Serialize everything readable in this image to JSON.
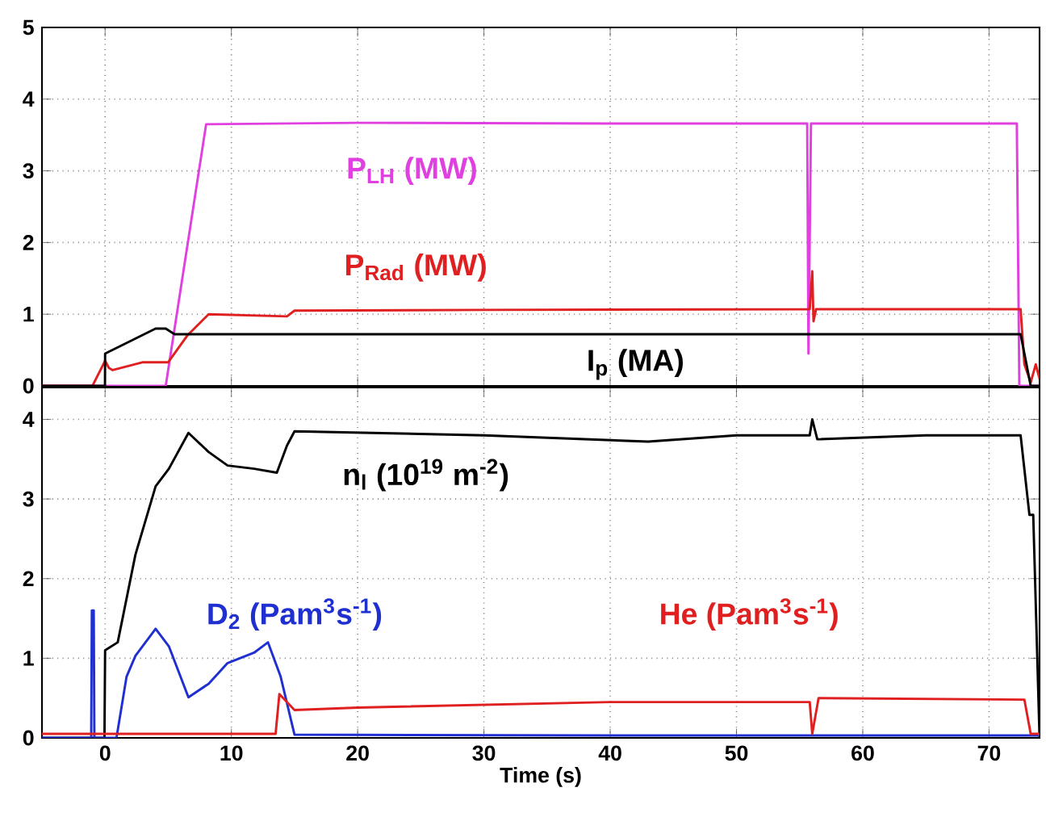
{
  "chart_data": [
    {
      "type": "line",
      "xlim": [
        -5,
        74
      ],
      "xticks": [
        0,
        10,
        20,
        30,
        40,
        50,
        60,
        70
      ],
      "ylim": [
        0,
        5
      ],
      "yticks": [
        0,
        1,
        2,
        3,
        4,
        5
      ],
      "grid": true,
      "tick_labels": "y",
      "line_style": "solid",
      "series": [
        {
          "name": "P$_{LH}$ (MW)",
          "color": "#e040e0",
          "x": [
            -5,
            4.8,
            8,
            20,
            40,
            55.6,
            55.7,
            55.9,
            72.2,
            72.4,
            74
          ],
          "values": [
            0,
            0,
            3.65,
            3.67,
            3.66,
            3.66,
            0.45,
            3.66,
            3.66,
            0,
            0
          ]
        },
        {
          "name": "P$_{Rad}$ (MW)",
          "color": "#e02020",
          "x": [
            -5,
            -1,
            0,
            0.3,
            0.6,
            3,
            5,
            6.5,
            8.2,
            14.4,
            15,
            30,
            55.8,
            56,
            56.1,
            56.3,
            72.5,
            72.8,
            73.3,
            73.7,
            74
          ],
          "values": [
            0,
            0,
            0.35,
            0.25,
            0.22,
            0.33,
            0.33,
            0.7,
            1.0,
            0.97,
            1.05,
            1.06,
            1.07,
            1.6,
            0.9,
            1.07,
            1.07,
            0.3,
            0.05,
            0.3,
            0.1
          ]
        },
        {
          "name": "I$_{p}$ (MA)",
          "color": "#000000",
          "x": [
            -5,
            -0.01,
            0,
            4,
            4.8,
            5.5,
            30,
            56,
            72.5,
            73.3,
            74
          ],
          "values": [
            0,
            0,
            0.45,
            0.8,
            0.8,
            0.72,
            0.72,
            0.72,
            0.72,
            0,
            0
          ]
        }
      ]
    },
    {
      "type": "line",
      "xlim": [
        -5,
        74
      ],
      "xticks": [
        0,
        10,
        20,
        30,
        40,
        50,
        60,
        70
      ],
      "ylim": [
        0,
        4.4
      ],
      "yticks": [
        0,
        1,
        2,
        3,
        4
      ],
      "grid": true,
      "xlabel": "Time (s)",
      "line_style": "solid",
      "series": [
        {
          "name": "n$_{l}$ (10$^{19}$ m$^{-2}$)",
          "color": "#000000",
          "x": [
            -5,
            -0.05,
            0,
            1,
            2.4,
            4,
            5.05,
            6.6,
            8.2,
            9.7,
            11.8,
            13.6,
            14.4,
            15,
            30,
            43,
            50,
            55.8,
            56,
            56.4,
            65,
            72.5,
            73.2,
            73.5,
            74
          ],
          "values": [
            0,
            0,
            1.1,
            1.2,
            2.3,
            3.16,
            3.38,
            3.83,
            3.59,
            3.42,
            3.38,
            3.33,
            3.67,
            3.85,
            3.8,
            3.72,
            3.8,
            3.8,
            4.0,
            3.75,
            3.8,
            3.8,
            2.8,
            2.8,
            0
          ]
        },
        {
          "name": "D$_{2}$ (Pam$^{3}$s$^{-1}$)",
          "color": "#2030d0",
          "x": [
            -5,
            -1.1,
            -1.05,
            -0.9,
            -0.85,
            0.9,
            1.7,
            2.4,
            4,
            5.05,
            6.6,
            8.2,
            9.7,
            11.8,
            12.9,
            13.9,
            15,
            40,
            74
          ],
          "values": [
            0,
            0,
            1.6,
            1.6,
            0,
            0,
            0.77,
            1.03,
            1.37,
            1.15,
            0.51,
            0.68,
            0.94,
            1.07,
            1.2,
            0.77,
            0.04,
            0.03,
            0.03
          ]
        },
        {
          "name": "He (Pam$^{3}$s$^{-1}$)",
          "color": "#e02020",
          "x": [
            -5,
            13.5,
            13.8,
            15,
            20,
            40,
            55.8,
            56,
            56.5,
            72.8,
            73.3,
            74
          ],
          "values": [
            0.05,
            0.05,
            0.55,
            0.35,
            0.38,
            0.45,
            0.45,
            0.05,
            0.5,
            0.48,
            0.05,
            0.05
          ]
        }
      ]
    }
  ]
}
